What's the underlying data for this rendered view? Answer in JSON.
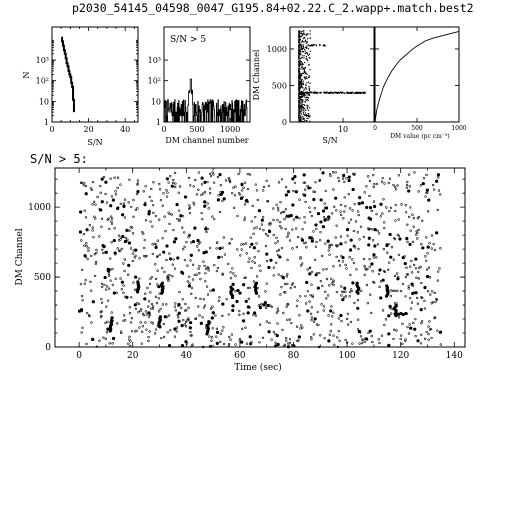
{
  "title": "p2030_54145_04598_0047_G195.84+02.22.C_2.wapp+.match.best2",
  "subtitle": "S/N > 5:",
  "chart_data": [
    {
      "type": "line",
      "panel": "sn-histogram",
      "xlabel": "S/N",
      "ylabel": "N",
      "xlim": [
        0,
        47
      ],
      "ylim_log10": [
        0,
        4.6
      ],
      "yscale": "log",
      "xticks": [
        0,
        20,
        40
      ],
      "yticks": [
        {
          "v": 1,
          "label": "1"
        },
        {
          "v": 10,
          "label": "10"
        },
        {
          "v": 100,
          "label": "10²"
        },
        {
          "v": 1000,
          "label": "10³"
        }
      ],
      "x": [
        5,
        5.5,
        6,
        6.5,
        7,
        7.5,
        8,
        8.5,
        9,
        9.5,
        10,
        10.5,
        11,
        11.5,
        12
      ],
      "values": [
        12000,
        8000,
        5000,
        3000,
        2000,
        1200,
        700,
        500,
        300,
        200,
        150,
        80,
        50,
        12,
        3
      ]
    },
    {
      "type": "line",
      "panel": "dm-channel-histogram",
      "xlabel": "DM channel number",
      "annotation": "S/N > 5",
      "xlim": [
        0,
        1300
      ],
      "ylim_log10": [
        0,
        4.6
      ],
      "yscale": "log",
      "xticks": [
        0,
        500,
        1000
      ],
      "yticks": [
        {
          "v": 1,
          "label": "1"
        },
        {
          "v": 10,
          "label": "10"
        },
        {
          "v": 100,
          "label": "10²"
        },
        {
          "v": 1000,
          "label": "10³"
        }
      ],
      "peak": {
        "x": 400,
        "y": 120
      }
    },
    {
      "type": "scatter",
      "panel": "dm-channel-vs-sn",
      "xlabel": "S/N",
      "ylabel": "DM Channel",
      "xlim": [
        4,
        13.5
      ],
      "ylim": [
        0,
        1300
      ],
      "xticks": [
        10
      ],
      "yticks": [
        0,
        500,
        1000
      ],
      "band_y": 400
    },
    {
      "type": "line",
      "panel": "channel-vs-dm-value",
      "xlabel": "DM value  (pc cm⁻³)",
      "xlim": [
        0,
        1000
      ],
      "ylim": [
        0,
        1300
      ],
      "xticks": [
        0,
        500,
        1000
      ],
      "x": [
        0,
        20,
        50,
        100,
        150,
        200,
        250,
        300,
        350,
        400,
        450,
        500,
        600,
        700,
        800,
        900,
        1000
      ],
      "values": [
        0,
        160,
        300,
        480,
        600,
        700,
        780,
        850,
        900,
        950,
        1000,
        1040,
        1110,
        1150,
        1180,
        1210,
        1240
      ]
    },
    {
      "type": "scatter",
      "panel": "dm-channel-vs-time",
      "xlabel": "Time (sec)",
      "ylabel": "DM Channel",
      "xlim": [
        -9,
        144
      ],
      "ylim": [
        0,
        1280
      ],
      "xticks": [
        0,
        20,
        40,
        60,
        80,
        100,
        120,
        140
      ],
      "yticks": [
        0,
        500,
        1000
      ],
      "n_points": 1400,
      "t_range": [
        0,
        135
      ],
      "dm_range": [
        0,
        1250
      ]
    }
  ]
}
